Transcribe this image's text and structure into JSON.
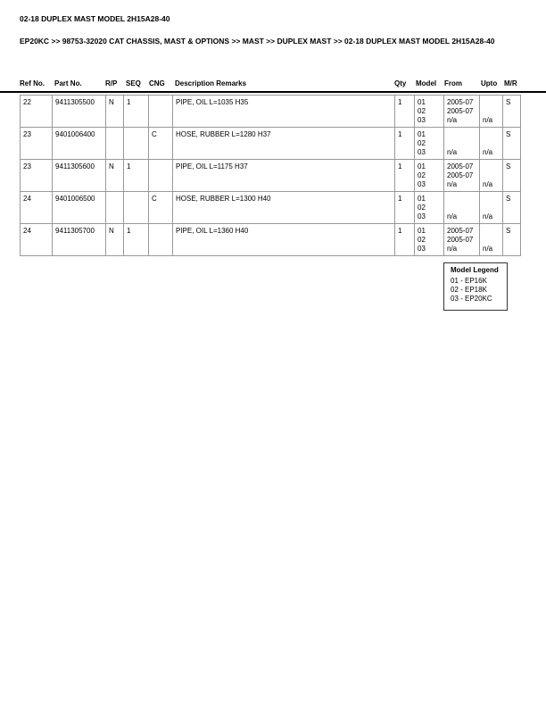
{
  "title": "02-18 DUPLEX MAST MODEL 2H15A28-40",
  "breadcrumb": "EP20KC >> 98753-32020 CAT CHASSIS, MAST & OPTIONS >> MAST >> DUPLEX MAST >> 02-18 DUPLEX MAST MODEL 2H15A28-40",
  "headers": [
    "Ref No.",
    "Part No.",
    "R/P",
    "SEQ",
    "CNG",
    "Description Remarks",
    "Qty",
    "Model",
    "From",
    "Upto",
    "M/R"
  ],
  "rows": [
    {
      "ref": "22",
      "part": "9411305500",
      "rp": "N",
      "seq": "1",
      "cng": "",
      "desc": "PIPE, OIL L=1035 H35",
      "qty": "1",
      "models": [
        "01",
        "02",
        "03"
      ],
      "from": [
        "2005-07",
        "2005-07",
        "n/a"
      ],
      "upto": [
        "",
        "",
        "n/a"
      ],
      "mr": "S"
    },
    {
      "ref": "23",
      "part": "9401006400",
      "rp": "",
      "seq": "",
      "cng": "C",
      "desc": "HOSE, RUBBER L=1280 H37",
      "qty": "1",
      "models": [
        "01",
        "02",
        "03"
      ],
      "from": [
        "",
        "",
        "n/a"
      ],
      "upto": [
        "",
        "",
        "n/a"
      ],
      "mr": "S"
    },
    {
      "ref": "23",
      "part": "9411305600",
      "rp": "N",
      "seq": "1",
      "cng": "",
      "desc": "PIPE, OIL L=1175 H37",
      "qty": "1",
      "models": [
        "01",
        "02",
        "03"
      ],
      "from": [
        "2005-07",
        "2005-07",
        "n/a"
      ],
      "upto": [
        "",
        "",
        "n/a"
      ],
      "mr": "S"
    },
    {
      "ref": "24",
      "part": "9401006500",
      "rp": "",
      "seq": "",
      "cng": "C",
      "desc": "HOSE, RUBBER L=1300 H40",
      "qty": "1",
      "models": [
        "01",
        "02",
        "03"
      ],
      "from": [
        "",
        "",
        "n/a"
      ],
      "upto": [
        "",
        "",
        "n/a"
      ],
      "mr": "S"
    },
    {
      "ref": "24",
      "part": "9411305700",
      "rp": "N",
      "seq": "1",
      "cng": "",
      "desc": "PIPE, OIL L=1360 H40",
      "qty": "1",
      "models": [
        "01",
        "02",
        "03"
      ],
      "from": [
        "2005-07",
        "2005-07",
        "n/a"
      ],
      "upto": [
        "",
        "",
        "n/a"
      ],
      "mr": "S"
    }
  ],
  "legend": {
    "title": "Model Legend",
    "items": [
      "01 - EP16K",
      "02 - EP18K",
      "03 - EP20KC"
    ]
  }
}
